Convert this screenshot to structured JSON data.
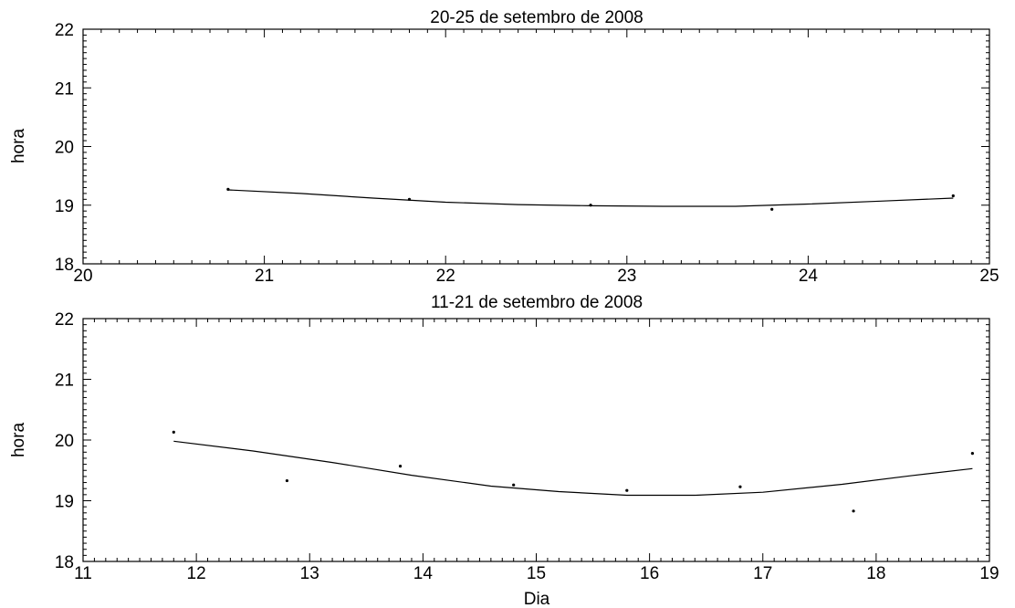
{
  "chart_data": [
    {
      "type": "scatter",
      "title": "20-25 de setembro de 2008",
      "xlabel": "",
      "ylabel": "hora",
      "xlim": [
        20,
        25
      ],
      "ylim": [
        18,
        22
      ],
      "xticks": [
        "20",
        "21",
        "22",
        "23",
        "24",
        "25"
      ],
      "yticks": [
        "18",
        "19",
        "20",
        "21",
        "22"
      ],
      "grid": false,
      "points": {
        "x": [
          20.8,
          21.8,
          22.8,
          23.8,
          24.8
        ],
        "y": [
          19.27,
          19.1,
          19.0,
          18.93,
          19.16
        ]
      },
      "fit_line": {
        "x": [
          20.8,
          21.2,
          21.6,
          22.0,
          22.4,
          22.8,
          23.2,
          23.6,
          24.0,
          24.4,
          24.8
        ],
        "y": [
          19.26,
          19.2,
          19.12,
          19.05,
          19.01,
          18.99,
          18.98,
          18.98,
          19.02,
          19.07,
          19.12
        ]
      }
    },
    {
      "type": "scatter",
      "title": "11-21 de setembro de 2008",
      "xlabel": "Dia",
      "ylabel": "hora",
      "xlim": [
        11,
        19
      ],
      "ylim": [
        18,
        22
      ],
      "xticks": [
        "11",
        "12",
        "13",
        "14",
        "15",
        "16",
        "17",
        "18",
        "19"
      ],
      "yticks": [
        "18",
        "19",
        "20",
        "21",
        "22"
      ],
      "grid": false,
      "points": {
        "x": [
          11.8,
          12.8,
          13.8,
          14.8,
          15.8,
          16.8,
          17.8,
          18.85
        ],
        "y": [
          20.13,
          19.33,
          19.57,
          19.26,
          19.17,
          19.23,
          18.83,
          19.78
        ]
      },
      "fit_line": {
        "x": [
          11.8,
          12.5,
          13.2,
          13.9,
          14.6,
          15.2,
          15.8,
          16.4,
          17.0,
          17.7,
          18.3,
          18.85
        ],
        "y": [
          19.98,
          19.82,
          19.63,
          19.42,
          19.24,
          19.15,
          19.09,
          19.09,
          19.14,
          19.27,
          19.41,
          19.53
        ]
      }
    }
  ]
}
